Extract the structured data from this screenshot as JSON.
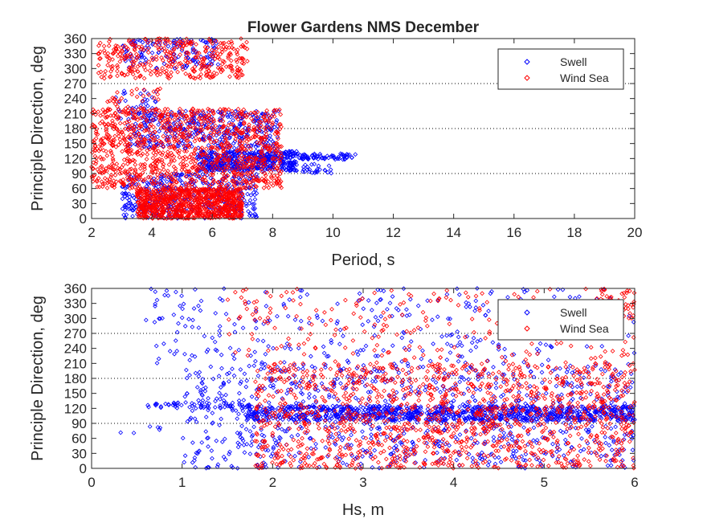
{
  "figure": {
    "title": "Flower Gardens NMS December"
  },
  "colors": {
    "swell": "#0000ff",
    "wind_sea": "#ff0000",
    "axis": "#262626",
    "reference_line": "#000000"
  },
  "chart_data": [
    {
      "type": "scatter",
      "title": "Flower Gardens NMS December",
      "xlabel": "Period, s",
      "ylabel": "Principle Direction, deg",
      "xlim": [
        2,
        20
      ],
      "ylim": [
        0,
        360
      ],
      "xticks": [
        2,
        4,
        6,
        8,
        10,
        12,
        14,
        16,
        18,
        20
      ],
      "yticks": [
        0,
        30,
        60,
        90,
        120,
        150,
        180,
        210,
        240,
        270,
        300,
        330,
        360
      ],
      "reference_lines_y": [
        90,
        180,
        270
      ],
      "marker": "diamond",
      "grid": false,
      "legend_position": "top-right",
      "series": [
        {
          "name": "Swell",
          "color": "#0000ff",
          "clusters": [
            {
              "x": [
                3.0,
                6.2
              ],
              "y": [
                300,
                360
              ],
              "n": 140
            },
            {
              "x": [
                3.2,
                8.2
              ],
              "y": [
                140,
                215
              ],
              "n": 400
            },
            {
              "x": [
                5.5,
                8.8
              ],
              "y": [
                95,
                135
              ],
              "n": 500
            },
            {
              "x": [
                8.8,
                10.8
              ],
              "y": [
                118,
                130
              ],
              "n": 70
            },
            {
              "x": [
                9.0,
                10.0
              ],
              "y": [
                90,
                110
              ],
              "n": 25
            },
            {
              "x": [
                3.0,
                7.5
              ],
              "y": [
                0,
                90
              ],
              "n": 420
            },
            {
              "x": [
                2.8,
                4.2
              ],
              "y": [
                200,
                260
              ],
              "n": 40
            }
          ]
        },
        {
          "name": "Wind Sea",
          "color": "#ff0000",
          "clusters": [
            {
              "x": [
                2.2,
                7.2
              ],
              "y": [
                280,
                360
              ],
              "n": 360
            },
            {
              "x": [
                2.0,
                8.3
              ],
              "y": [
                60,
                220
              ],
              "n": 1100
            },
            {
              "x": [
                3.5,
                7.0
              ],
              "y": [
                0,
                60
              ],
              "n": 900
            },
            {
              "x": [
                2.5,
                4.5
              ],
              "y": [
                210,
                260
              ],
              "n": 40
            }
          ]
        }
      ]
    },
    {
      "type": "scatter",
      "xlabel": "Hs, m",
      "ylabel": "Principle Direction, deg",
      "xlim": [
        0,
        6
      ],
      "ylim": [
        0,
        360
      ],
      "xticks": [
        0,
        1,
        2,
        3,
        4,
        5,
        6
      ],
      "yticks": [
        0,
        30,
        60,
        90,
        120,
        150,
        180,
        210,
        240,
        270,
        300,
        330,
        360
      ],
      "reference_lines_y": [
        90,
        180,
        270
      ],
      "marker": "diamond",
      "grid": false,
      "legend_position": "top-right",
      "series": [
        {
          "name": "Swell",
          "color": "#0000ff",
          "clusters": [
            {
              "x": [
                0.6,
                1.6
              ],
              "y": [
                120,
                132
              ],
              "n": 45
            },
            {
              "x": [
                0.3,
                0.9
              ],
              "y": [
                70,
                85
              ],
              "n": 6
            },
            {
              "x": [
                1.7,
                6.0
              ],
              "y": [
                95,
                125
              ],
              "n": 900
            },
            {
              "x": [
                1.0,
                6.0
              ],
              "y": [
                0,
                210
              ],
              "n": 900
            },
            {
              "x": [
                0.6,
                6.0
              ],
              "y": [
                210,
                360
              ],
              "n": 300
            }
          ]
        },
        {
          "name": "Wind Sea",
          "color": "#ff0000",
          "clusters": [
            {
              "x": [
                1.8,
                6.0
              ],
              "y": [
                0,
                210
              ],
              "n": 1300
            },
            {
              "x": [
                1.5,
                6.0
              ],
              "y": [
                210,
                360
              ],
              "n": 220
            },
            {
              "x": [
                5.6,
                6.0
              ],
              "y": [
                300,
                360
              ],
              "n": 40
            }
          ]
        }
      ]
    }
  ]
}
